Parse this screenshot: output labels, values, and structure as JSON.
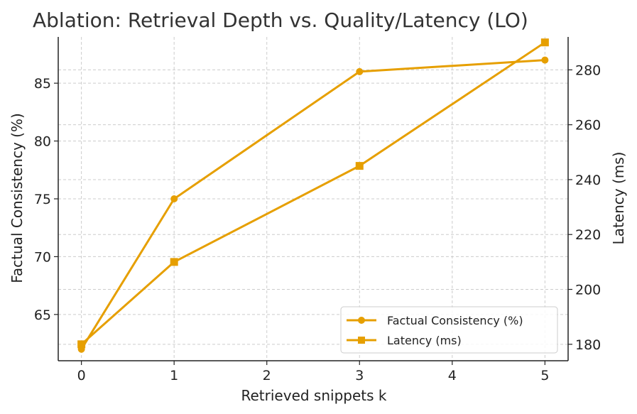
{
  "chart_data": {
    "type": "line",
    "title": "Ablation: Retrieval Depth vs. Quality/Latency (LO)",
    "xlabel": "Retrieved snippets k",
    "ylabel_left": "Factual Consistency (%)",
    "ylabel_right": "Latency (ms)",
    "x": [
      0,
      1,
      3,
      5
    ],
    "xlim": [
      -0.25,
      5.25
    ],
    "x_ticks": [
      0,
      1,
      2,
      3,
      4,
      5
    ],
    "ylim_left": [
      61,
      89
    ],
    "y_ticks_left": [
      65,
      70,
      75,
      80,
      85
    ],
    "ylim_right": [
      174,
      292
    ],
    "y_ticks_right": [
      180,
      200,
      220,
      240,
      260,
      280
    ],
    "grid": true,
    "legend_position": "lower-right",
    "series": [
      {
        "name": "Factual Consistency (%)",
        "axis": "left",
        "marker": "circle",
        "color": "#E69F00",
        "values": [
          62,
          75,
          86,
          87
        ]
      },
      {
        "name": "Latency (ms)",
        "axis": "right",
        "marker": "square",
        "color": "#E69F00",
        "values": [
          180,
          210,
          245,
          290
        ]
      }
    ]
  }
}
